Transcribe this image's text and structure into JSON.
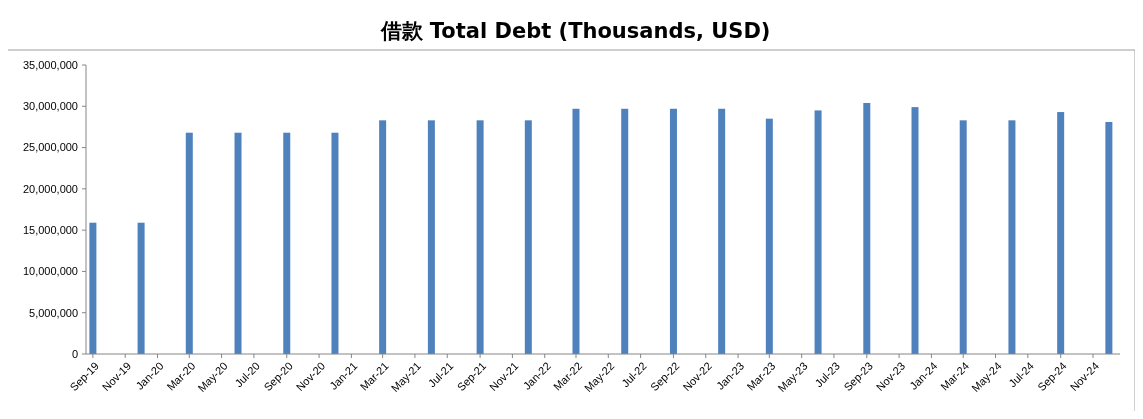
{
  "chart_data": {
    "type": "bar",
    "title": "借款 Total Debt (Thousands, USD)",
    "x": [
      "2019-09",
      "2019-12",
      "2020-03",
      "2020-06",
      "2020-09",
      "2020-12",
      "2021-03",
      "2021-06",
      "2021-09",
      "2021-12",
      "2022-03",
      "2022-06",
      "2022-09",
      "2022-12",
      "2023-03",
      "2023-06",
      "2023-09",
      "2023-12",
      "2024-03",
      "2024-06",
      "2024-09",
      "2024-12"
    ],
    "values": [
      15900000,
      15900000,
      26800000,
      26800000,
      26800000,
      26800000,
      28300000,
      28300000,
      28300000,
      28300000,
      29700000,
      29700000,
      29700000,
      29700000,
      28500000,
      29500000,
      30400000,
      29900000,
      28300000,
      28300000,
      29300000,
      28100000
    ],
    "color": "#4f81bd",
    "ylim": [
      0,
      35000000
    ],
    "yticks": [
      {
        "value": 0,
        "label": "0"
      },
      {
        "value": 5000000,
        "label": "5,000,000"
      },
      {
        "value": 10000000,
        "label": "10,000,000"
      },
      {
        "value": 15000000,
        "label": "15,000,000"
      },
      {
        "value": 20000000,
        "label": "20,000,000"
      },
      {
        "value": 25000000,
        "label": "25,000,000"
      },
      {
        "value": 30000000,
        "label": "30,000,000"
      },
      {
        "value": 35000000,
        "label": "35,000,000"
      }
    ],
    "xlim": [
      "2019-08-19",
      "2024-12-22"
    ],
    "xticks": [
      {
        "value": "2019-09",
        "label": "Sep-19"
      },
      {
        "value": "2019-11",
        "label": "Nov-19"
      },
      {
        "value": "2020-01",
        "label": "Jan-20"
      },
      {
        "value": "2020-03",
        "label": "Mar-20"
      },
      {
        "value": "2020-05",
        "label": "May-20"
      },
      {
        "value": "2020-07",
        "label": "Jul-20"
      },
      {
        "value": "2020-09",
        "label": "Sep-20"
      },
      {
        "value": "2020-11",
        "label": "Nov-20"
      },
      {
        "value": "2021-01",
        "label": "Jan-21"
      },
      {
        "value": "2021-03",
        "label": "Mar-21"
      },
      {
        "value": "2021-05",
        "label": "May-21"
      },
      {
        "value": "2021-07",
        "label": "Jul-21"
      },
      {
        "value": "2021-09",
        "label": "Sep-21"
      },
      {
        "value": "2021-11",
        "label": "Nov-21"
      },
      {
        "value": "2022-01",
        "label": "Jan-22"
      },
      {
        "value": "2022-03",
        "label": "Mar-22"
      },
      {
        "value": "2022-05",
        "label": "May-22"
      },
      {
        "value": "2022-07",
        "label": "Jul-22"
      },
      {
        "value": "2022-09",
        "label": "Sep-22"
      },
      {
        "value": "2022-11",
        "label": "Nov-22"
      },
      {
        "value": "2023-01",
        "label": "Jan-23"
      },
      {
        "value": "2023-03",
        "label": "Mar-23"
      },
      {
        "value": "2023-05",
        "label": "May-23"
      },
      {
        "value": "2023-07",
        "label": "Jul-23"
      },
      {
        "value": "2023-09",
        "label": "Sep-23"
      },
      {
        "value": "2023-11",
        "label": "Nov-23"
      },
      {
        "value": "2024-01",
        "label": "Jan-24"
      },
      {
        "value": "2024-03",
        "label": "Mar-24"
      },
      {
        "value": "2024-05",
        "label": "May-24"
      },
      {
        "value": "2024-07",
        "label": "Jul-24"
      },
      {
        "value": "2024-09",
        "label": "Sep-24"
      },
      {
        "value": "2024-11",
        "label": "Nov-24"
      }
    ]
  }
}
